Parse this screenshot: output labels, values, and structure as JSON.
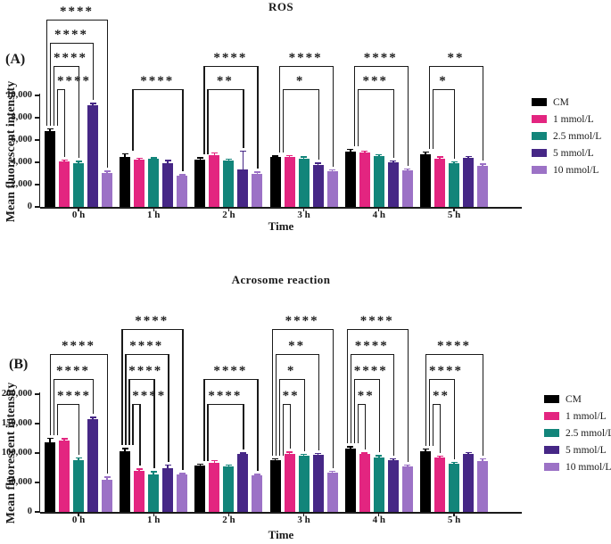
{
  "chart_data": [
    {
      "type": "bar",
      "panel_label": "(A)",
      "title": "ROS",
      "xlabel": "Time",
      "ylabel": "Mean fluorescent intensity",
      "ylim": [
        0,
        10000
      ],
      "grid": false,
      "legend_position": "right",
      "yticks": [
        {
          "value": 0,
          "label": "0"
        },
        {
          "value": 2000,
          "label": "2,000"
        },
        {
          "value": 4000,
          "label": "4,000"
        },
        {
          "value": 6000,
          "label": "6,000"
        },
        {
          "value": 8000,
          "label": "8,000"
        },
        {
          "value": 10000,
          "label": "10,000"
        }
      ],
      "categories": [
        "0 h",
        "1 h",
        "2 h",
        "3 h",
        "4 h",
        "5 h"
      ],
      "series": [
        {
          "name": "CM",
          "color": "#000000",
          "values": [
            6800,
            4500,
            4250,
            4450,
            4950,
            4750
          ],
          "errors": [
            200,
            250,
            120,
            100,
            180,
            150
          ]
        },
        {
          "name": "1 mmol/L",
          "color": "#E32580",
          "values": [
            4050,
            4250,
            4650,
            4450,
            4900,
            4350
          ],
          "errors": [
            120,
            80,
            180,
            150,
            80,
            100
          ]
        },
        {
          "name": "2.5 mmol/L",
          "color": "#12857A",
          "values": [
            3950,
            4300,
            4150,
            4350,
            4550,
            3950
          ],
          "errors": [
            120,
            100,
            100,
            120,
            100,
            80
          ]
        },
        {
          "name": "5 mmol/L",
          "color": "#462786",
          "values": [
            9150,
            3950,
            3350,
            3800,
            4000,
            4400
          ],
          "errors": [
            100,
            180,
            1650,
            100,
            100,
            100
          ]
        },
        {
          "name": "10 mmol/L",
          "color": "#9C72C6",
          "values": [
            3050,
            2800,
            3000,
            3200,
            3300,
            3700
          ],
          "errors": [
            120,
            80,
            100,
            100,
            100,
            120
          ]
        }
      ],
      "brackets": [
        {
          "group": 0,
          "to": 1,
          "level": 0,
          "stars": "****"
        },
        {
          "group": 0,
          "to": 2,
          "level": 1,
          "stars": "****"
        },
        {
          "group": 0,
          "to": 3,
          "level": 2,
          "stars": "****"
        },
        {
          "group": 0,
          "to": 4,
          "level": 3,
          "stars": "****"
        },
        {
          "group": 1,
          "to": 4,
          "level": 0,
          "stars": "****"
        },
        {
          "group": 2,
          "to": 3,
          "level": 0,
          "stars": "**"
        },
        {
          "group": 2,
          "to": 4,
          "level": 1,
          "stars": "****"
        },
        {
          "group": 3,
          "to": 3,
          "level": 0,
          "stars": "*"
        },
        {
          "group": 3,
          "to": 4,
          "level": 1,
          "stars": "****"
        },
        {
          "group": 4,
          "to": 3,
          "level": 0,
          "stars": "***"
        },
        {
          "group": 4,
          "to": 4,
          "level": 1,
          "stars": "****"
        },
        {
          "group": 5,
          "to": 2,
          "level": 0,
          "stars": "*"
        },
        {
          "group": 5,
          "to": 4,
          "level": 1,
          "stars": "**"
        }
      ]
    },
    {
      "type": "bar",
      "panel_label": "(B)",
      "title": "Acrosome reaction",
      "xlabel": "Time",
      "ylabel": "Mean fluorescent intensity",
      "ylim": [
        0,
        200000
      ],
      "grid": false,
      "legend_position": "right",
      "yticks": [
        {
          "value": 0,
          "label": "0"
        },
        {
          "value": 50000,
          "label": "50,000"
        },
        {
          "value": 100000,
          "label": "100,000"
        },
        {
          "value": 150000,
          "label": "150,000"
        },
        {
          "value": 200000,
          "label": "200,000"
        }
      ],
      "categories": [
        "0 h",
        "1 h",
        "2 h",
        "3 h",
        "4 h",
        "5 h"
      ],
      "series": [
        {
          "name": "CM",
          "color": "#000000",
          "values": [
            118000,
            103000,
            79000,
            88000,
            108000,
            103000
          ],
          "errors": [
            7000,
            4000,
            1500,
            1500,
            2000,
            3500
          ]
        },
        {
          "name": "1 mmol/L",
          "color": "#E32580",
          "values": [
            121000,
            70000,
            83000,
            98000,
            98000,
            92000
          ],
          "errors": [
            3000,
            2000,
            4000,
            3000,
            1500,
            2000
          ]
        },
        {
          "name": "2.5 mmol/L",
          "color": "#12857A",
          "values": [
            88000,
            63000,
            77000,
            95000,
            93000,
            82000
          ],
          "errors": [
            3000,
            5000,
            2000,
            2000,
            2000,
            2000
          ]
        },
        {
          "name": "5 mmol/L",
          "color": "#462786",
          "values": [
            158000,
            75000,
            98000,
            97000,
            88000,
            99000
          ],
          "errors": [
            2000,
            4000,
            2000,
            2000,
            1500,
            1500
          ]
        },
        {
          "name": "10 mmol/L",
          "color": "#9C72C6",
          "values": [
            54000,
            63000,
            62000,
            67000,
            77000,
            87000
          ],
          "errors": [
            5000,
            1500,
            1500,
            1500,
            2500,
            3000
          ]
        }
      ],
      "brackets": [
        {
          "group": 0,
          "to": 2,
          "level": 0,
          "stars": "****"
        },
        {
          "group": 0,
          "to": 3,
          "level": 1,
          "stars": "****"
        },
        {
          "group": 0,
          "to": 4,
          "level": 2,
          "stars": "****"
        },
        {
          "group": 1,
          "to": 1,
          "level": 0,
          "stars": "****"
        },
        {
          "group": 1,
          "to": 2,
          "level": 1,
          "stars": "****"
        },
        {
          "group": 1,
          "to": 3,
          "level": 2,
          "stars": "****"
        },
        {
          "group": 1,
          "to": 4,
          "level": 3,
          "stars": "****"
        },
        {
          "group": 2,
          "to": 3,
          "level": 0,
          "stars": "****"
        },
        {
          "group": 2,
          "to": 4,
          "level": 1,
          "stars": "****"
        },
        {
          "group": 3,
          "to": 1,
          "level": 0,
          "stars": "**"
        },
        {
          "group": 3,
          "to": 2,
          "level": 1,
          "stars": "*"
        },
        {
          "group": 3,
          "to": 3,
          "level": 2,
          "stars": "**"
        },
        {
          "group": 3,
          "to": 4,
          "level": 3,
          "stars": "****"
        },
        {
          "group": 4,
          "to": 1,
          "level": 0,
          "stars": "**"
        },
        {
          "group": 4,
          "to": 2,
          "level": 1,
          "stars": "****"
        },
        {
          "group": 4,
          "to": 3,
          "level": 2,
          "stars": "****"
        },
        {
          "group": 4,
          "to": 4,
          "level": 3,
          "stars": "****"
        },
        {
          "group": 5,
          "to": 1,
          "level": 0,
          "stars": "**"
        },
        {
          "group": 5,
          "to": 2,
          "level": 1,
          "stars": "****"
        },
        {
          "group": 5,
          "to": 4,
          "level": 2,
          "stars": "****"
        }
      ]
    }
  ],
  "style": {
    "axis_color": "#1a1a1a",
    "background": "#ffffff"
  }
}
